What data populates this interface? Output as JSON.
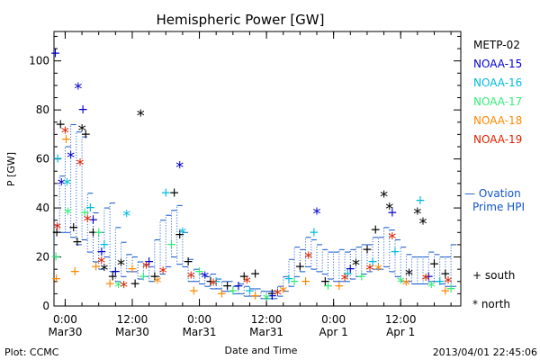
{
  "chart_data": {
    "type": "scatter",
    "title": "Hemispheric Power [GW]",
    "ylabel": "P [GW]",
    "xlabel": "Date and Time",
    "ylim": [
      0,
      112
    ],
    "x_range": [
      "2013-03-29T22:00",
      "2013-04-01T22:45"
    ],
    "y_ticks": [
      "0",
      "20",
      "40",
      "60",
      "80",
      "100"
    ],
    "x_ticks": [
      {
        "t": "2013-03-30T00:00",
        "time": "0:00",
        "date": "Mar30"
      },
      {
        "t": "2013-03-30T12:00",
        "time": "12:00",
        "date": "Mar30"
      },
      {
        "t": "2013-03-31T00:00",
        "time": "0:00",
        "date": "Mar31"
      },
      {
        "t": "2013-03-31T12:00",
        "time": "12:00",
        "date": "Mar31"
      },
      {
        "t": "2013-04-01T00:00",
        "time": "0:00",
        "date": "Apr 1"
      },
      {
        "t": "2013-04-01T12:00",
        "time": "12:00",
        "date": "Apr 1"
      }
    ],
    "grid": false,
    "legend_position": "right",
    "series": [
      {
        "name": "METP-02",
        "color": "#000000",
        "points": [
          [
            "2013-03-29T22:30",
            30,
            "+"
          ],
          [
            "2013-03-29T23:10",
            74,
            "+"
          ],
          [
            "2013-03-30T01:30",
            32,
            "+"
          ],
          [
            "2013-03-30T02:10",
            26,
            "+"
          ],
          [
            "2013-03-30T03:00",
            72,
            "*"
          ],
          [
            "2013-03-30T03:40",
            70,
            "+"
          ],
          [
            "2013-03-30T05:00",
            30,
            "+"
          ],
          [
            "2013-03-30T07:00",
            15,
            "*"
          ],
          [
            "2013-03-30T08:30",
            12,
            "+"
          ],
          [
            "2013-03-30T10:00",
            17,
            "*"
          ],
          [
            "2013-03-30T12:30",
            9,
            "+"
          ],
          [
            "2013-03-30T13:30",
            78,
            "*"
          ],
          [
            "2013-03-30T16:00",
            12,
            "+"
          ],
          [
            "2013-03-30T19:30",
            46,
            "+"
          ],
          [
            "2013-03-30T20:30",
            29,
            "+"
          ],
          [
            "2013-03-30T22:00",
            18,
            "+"
          ],
          [
            "2013-03-31T02:00",
            10,
            "+"
          ],
          [
            "2013-03-31T05:00",
            8,
            "+"
          ],
          [
            "2013-03-31T08:00",
            12,
            "+"
          ],
          [
            "2013-03-31T10:00",
            13,
            "+"
          ],
          [
            "2013-03-31T13:00",
            5,
            "+"
          ],
          [
            "2013-03-31T18:00",
            16,
            "+"
          ],
          [
            "2013-03-31T22:30",
            10,
            "+"
          ],
          [
            "2013-04-01T04:00",
            17,
            "*"
          ],
          [
            "2013-04-01T06:00",
            23,
            "+"
          ],
          [
            "2013-04-01T07:30",
            31,
            "+"
          ],
          [
            "2013-04-01T09:00",
            45,
            "*"
          ],
          [
            "2013-04-01T10:00",
            40,
            "*"
          ],
          [
            "2013-04-01T13:30",
            13,
            "*"
          ],
          [
            "2013-04-01T15:00",
            38,
            "*"
          ],
          [
            "2013-04-01T16:00",
            34,
            "*"
          ],
          [
            "2013-04-01T18:00",
            17,
            "+"
          ],
          [
            "2013-04-01T20:00",
            13,
            "+"
          ]
        ]
      },
      {
        "name": "NOAA-15",
        "color": "#0000cc",
        "points": [
          [
            "2013-03-29T22:15",
            103,
            "+"
          ],
          [
            "2013-03-29T23:20",
            50,
            "*"
          ],
          [
            "2013-03-30T01:00",
            61,
            "*"
          ],
          [
            "2013-03-30T02:20",
            89,
            "*"
          ],
          [
            "2013-03-30T03:10",
            80,
            "+"
          ],
          [
            "2013-03-30T05:00",
            35,
            "+"
          ],
          [
            "2013-03-30T06:30",
            22,
            "+"
          ],
          [
            "2013-03-30T09:00",
            14,
            "+"
          ],
          [
            "2013-03-30T15:00",
            18,
            "+"
          ],
          [
            "2013-03-30T20:30",
            57,
            "*"
          ],
          [
            "2013-03-31T01:00",
            12,
            "*"
          ],
          [
            "2013-03-31T07:00",
            8,
            "+"
          ],
          [
            "2013-03-31T13:00",
            4,
            "+"
          ],
          [
            "2013-03-31T21:00",
            38,
            "*"
          ],
          [
            "2013-04-01T03:00",
            15,
            "+"
          ],
          [
            "2013-04-01T10:30",
            38,
            "+"
          ],
          [
            "2013-04-01T17:00",
            12,
            "+"
          ]
        ]
      },
      {
        "name": "NOAA-16",
        "color": "#00bbdd",
        "points": [
          [
            "2013-03-29T22:40",
            60,
            "+"
          ],
          [
            "2013-03-30T00:20",
            50,
            "*"
          ],
          [
            "2013-03-30T04:30",
            40,
            "+"
          ],
          [
            "2013-03-30T07:00",
            25,
            "+"
          ],
          [
            "2013-03-30T11:00",
            37,
            "*"
          ],
          [
            "2013-03-30T18:00",
            46,
            "+"
          ],
          [
            "2013-03-30T21:00",
            30,
            "*"
          ],
          [
            "2013-03-31T03:00",
            10,
            "+"
          ],
          [
            "2013-03-31T09:00",
            6,
            "+"
          ],
          [
            "2013-03-31T16:00",
            11,
            "+"
          ],
          [
            "2013-03-31T20:30",
            30,
            "+"
          ],
          [
            "2013-04-01T02:30",
            13,
            "+"
          ],
          [
            "2013-04-01T07:00",
            18,
            "+"
          ],
          [
            "2013-04-01T11:00",
            22,
            "+"
          ],
          [
            "2013-04-01T15:30",
            43,
            "+"
          ],
          [
            "2013-04-01T19:00",
            10,
            "+"
          ]
        ]
      },
      {
        "name": "NOAA-17",
        "color": "#33ee77",
        "points": [
          [
            "2013-03-29T22:20",
            20,
            "+"
          ],
          [
            "2013-03-30T00:30",
            38,
            "*"
          ],
          [
            "2013-03-30T03:30",
            38,
            "+"
          ],
          [
            "2013-03-30T06:00",
            30,
            "+"
          ],
          [
            "2013-03-30T09:30",
            8,
            "*"
          ],
          [
            "2013-03-30T14:00",
            12,
            "+"
          ],
          [
            "2013-03-30T19:00",
            25,
            "+"
          ],
          [
            "2013-03-31T00:00",
            14,
            "+"
          ],
          [
            "2013-03-31T06:00",
            6,
            "+"
          ],
          [
            "2013-03-31T12:00",
            3,
            "*"
          ],
          [
            "2013-03-31T17:00",
            10,
            "+"
          ],
          [
            "2013-03-31T23:00",
            8,
            "+"
          ],
          [
            "2013-04-01T05:00",
            12,
            "+"
          ],
          [
            "2013-04-01T12:00",
            10,
            "*"
          ],
          [
            "2013-04-01T17:30",
            8,
            "*"
          ],
          [
            "2013-04-01T21:00",
            7,
            "+"
          ]
        ]
      },
      {
        "name": "NOAA-18",
        "color": "#ff8800",
        "points": [
          [
            "2013-03-29T22:25",
            11,
            "+"
          ],
          [
            "2013-03-30T00:10",
            68,
            "+"
          ],
          [
            "2013-03-30T01:45",
            14,
            "+"
          ],
          [
            "2013-03-30T05:30",
            16,
            "+"
          ],
          [
            "2013-03-30T08:00",
            9,
            "+"
          ],
          [
            "2013-03-30T12:00",
            15,
            "+"
          ],
          [
            "2013-03-30T16:30",
            10,
            "*"
          ],
          [
            "2013-03-30T23:00",
            6,
            "+"
          ],
          [
            "2013-03-31T04:00",
            5,
            "+"
          ],
          [
            "2013-03-31T10:00",
            4,
            "+"
          ],
          [
            "2013-03-31T15:00",
            6,
            "*"
          ],
          [
            "2013-03-31T19:00",
            10,
            "+"
          ],
          [
            "2013-04-01T01:00",
            8,
            "+"
          ],
          [
            "2013-04-01T08:00",
            15,
            "*"
          ],
          [
            "2013-04-01T13:00",
            9,
            "*"
          ],
          [
            "2013-04-01T20:00",
            6,
            "+"
          ]
        ]
      },
      {
        "name": "NOAA-19",
        "color": "#dd2200",
        "points": [
          [
            "2013-03-29T22:35",
            32,
            "*"
          ],
          [
            "2013-03-30T00:00",
            71,
            "*"
          ],
          [
            "2013-03-30T02:40",
            58,
            "*"
          ],
          [
            "2013-03-30T04:00",
            35,
            "*"
          ],
          [
            "2013-03-30T06:30",
            18,
            "*"
          ],
          [
            "2013-03-30T10:30",
            8,
            "*"
          ],
          [
            "2013-03-30T14:30",
            16,
            "*"
          ],
          [
            "2013-03-30T17:30",
            14,
            "*"
          ],
          [
            "2013-03-30T22:30",
            12,
            "*"
          ],
          [
            "2013-03-31T02:30",
            9,
            "*"
          ],
          [
            "2013-03-31T08:30",
            10,
            "*"
          ],
          [
            "2013-03-31T14:00",
            5,
            "*"
          ],
          [
            "2013-03-31T19:30",
            20,
            "*"
          ],
          [
            "2013-04-01T02:00",
            11,
            "*"
          ],
          [
            "2013-04-01T06:30",
            15,
            "*"
          ],
          [
            "2013-04-01T10:30",
            28,
            "*"
          ],
          [
            "2013-04-01T16:30",
            11,
            "*"
          ],
          [
            "2013-04-01T20:30",
            10,
            "*"
          ]
        ]
      }
    ],
    "ovation": {
      "name": "Ovation Prime HPI",
      "color": "#1155cc",
      "segments": [
        [
          "2013-03-29T22:00",
          20,
          33
        ],
        [
          "2013-03-29T23:00",
          30,
          53
        ],
        [
          "2013-03-30T00:00",
          30,
          65
        ],
        [
          "2013-03-30T01:00",
          28,
          74
        ],
        [
          "2013-03-30T02:00",
          25,
          71
        ],
        [
          "2013-03-30T03:00",
          27,
          69
        ],
        [
          "2013-03-30T04:00",
          22,
          46
        ],
        [
          "2013-03-30T05:00",
          18,
          38
        ],
        [
          "2013-03-30T06:00",
          15,
          30
        ],
        [
          "2013-03-30T07:00",
          20,
          40
        ],
        [
          "2013-03-30T08:00",
          14,
          42
        ],
        [
          "2013-03-30T09:00",
          10,
          32
        ],
        [
          "2013-03-30T10:00",
          12,
          26
        ],
        [
          "2013-03-30T11:00",
          14,
          21
        ],
        [
          "2013-03-30T12:00",
          14,
          20
        ],
        [
          "2013-03-30T13:00",
          11,
          18
        ],
        [
          "2013-03-30T14:00",
          12,
          17
        ],
        [
          "2013-03-30T15:00",
          10,
          16
        ],
        [
          "2013-03-30T16:00",
          12,
          27
        ],
        [
          "2013-03-30T17:00",
          13,
          35
        ],
        [
          "2013-03-30T18:00",
          16,
          37
        ],
        [
          "2013-03-30T19:00",
          20,
          39
        ],
        [
          "2013-03-30T20:00",
          17,
          41
        ],
        [
          "2013-03-30T21:00",
          16,
          30
        ],
        [
          "2013-03-30T22:00",
          10,
          19
        ],
        [
          "2013-03-30T23:00",
          10,
          15
        ],
        [
          "2013-03-31T00:00",
          9,
          13
        ],
        [
          "2013-03-31T01:00",
          8,
          12
        ],
        [
          "2013-03-31T02:00",
          7,
          13
        ],
        [
          "2013-03-31T03:00",
          7,
          11
        ],
        [
          "2013-03-31T04:00",
          6,
          10
        ],
        [
          "2013-03-31T05:00",
          6,
          10
        ],
        [
          "2013-03-31T06:00",
          5,
          8
        ],
        [
          "2013-03-31T07:00",
          5,
          9
        ],
        [
          "2013-03-31T08:00",
          4,
          8
        ],
        [
          "2013-03-31T09:00",
          4,
          7
        ],
        [
          "2013-03-31T10:00",
          4,
          7
        ],
        [
          "2013-03-31T11:00",
          3,
          6
        ],
        [
          "2013-03-31T12:00",
          3,
          6
        ],
        [
          "2013-03-31T13:00",
          3,
          6
        ],
        [
          "2013-03-31T14:00",
          4,
          8
        ],
        [
          "2013-03-31T15:00",
          6,
          12
        ],
        [
          "2013-03-31T16:00",
          8,
          19
        ],
        [
          "2013-03-31T17:00",
          12,
          24
        ],
        [
          "2013-03-31T18:00",
          14,
          23
        ],
        [
          "2013-03-31T19:00",
          16,
          28
        ],
        [
          "2013-03-31T20:00",
          15,
          27
        ],
        [
          "2013-03-31T21:00",
          14,
          25
        ],
        [
          "2013-03-31T22:00",
          13,
          23
        ],
        [
          "2013-03-31T23:00",
          11,
          22
        ],
        [
          "2013-04-01T00:00",
          10,
          22
        ],
        [
          "2013-04-01T01:00",
          10,
          23
        ],
        [
          "2013-04-01T02:00",
          10,
          22
        ],
        [
          "2013-04-01T03:00",
          11,
          23
        ],
        [
          "2013-04-01T04:00",
          12,
          24
        ],
        [
          "2013-04-01T05:00",
          13,
          25
        ],
        [
          "2013-04-01T06:00",
          14,
          25
        ],
        [
          "2013-04-01T07:00",
          15,
          28
        ],
        [
          "2013-04-01T08:00",
          15,
          28
        ],
        [
          "2013-04-01T09:00",
          16,
          32
        ],
        [
          "2013-04-01T10:00",
          14,
          31
        ],
        [
          "2013-04-01T11:00",
          12,
          27
        ],
        [
          "2013-04-01T12:00",
          10,
          24
        ],
        [
          "2013-04-01T13:00",
          10,
          21
        ],
        [
          "2013-04-01T14:00",
          9,
          20
        ],
        [
          "2013-04-01T15:00",
          9,
          20
        ],
        [
          "2013-04-01T16:00",
          9,
          20
        ],
        [
          "2013-04-01T17:00",
          10,
          22
        ],
        [
          "2013-04-01T18:00",
          10,
          21
        ],
        [
          "2013-04-01T19:00",
          9,
          20
        ],
        [
          "2013-04-01T20:00",
          8,
          20
        ],
        [
          "2013-04-01T21:00",
          8,
          25
        ]
      ]
    }
  },
  "labels": {
    "title": "Hemispheric Power [GW]",
    "ylabel": "P [GW]",
    "xlabel": "Date and Time",
    "ovation_dash": "— Ovation",
    "ovation_line2": "Prime HPI",
    "south": "+ south",
    "north": "* north",
    "plot_credit": "Plot: CCMC",
    "timestamp": "2013/04/01 22:45:06"
  }
}
